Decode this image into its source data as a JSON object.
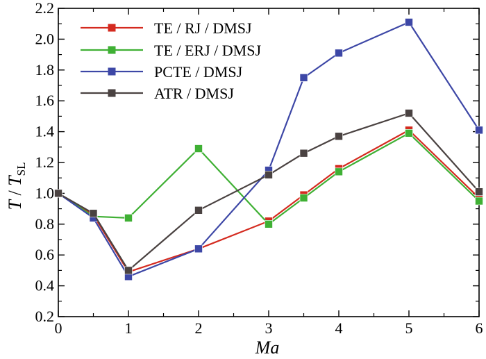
{
  "chart_data": {
    "type": "line",
    "title": "",
    "xlabel": "Ma",
    "ylabel_main": "T",
    "ylabel_sep": " / ",
    "ylabel_sub_base": "T",
    "ylabel_subscript": "SL",
    "xlim": [
      0,
      6
    ],
    "ylim": [
      0.2,
      2.2
    ],
    "x_ticks": [
      0,
      1,
      2,
      3,
      4,
      5,
      6
    ],
    "x_tick_labels": [
      "0",
      "1",
      "2",
      "3",
      "4",
      "5",
      "6"
    ],
    "y_ticks": [
      0.2,
      0.4,
      0.6,
      0.8,
      1.0,
      1.2,
      1.4,
      1.6,
      1.8,
      2.0,
      2.2
    ],
    "y_tick_labels": [
      "0.2",
      "0.4",
      "0.6",
      "0.8",
      "1.0",
      "1.2",
      "1.4",
      "1.6",
      "1.8",
      "2.0",
      "2.2"
    ],
    "grid": false,
    "legend_position": "top-left",
    "series": [
      {
        "name": "TE / RJ / DMSJ",
        "color": "#d42a1f",
        "x": [
          0,
          0.5,
          1,
          2,
          3,
          3.5,
          4,
          5,
          6
        ],
        "y": [
          1.0,
          0.86,
          0.49,
          0.64,
          0.82,
          0.99,
          1.16,
          1.41,
          0.97
        ]
      },
      {
        "name": "TE / ERJ / DMSJ",
        "color": "#3fb034",
        "x": [
          0,
          0.5,
          1,
          2,
          3,
          3.5,
          4,
          5,
          6
        ],
        "y": [
          1.0,
          0.85,
          0.84,
          1.29,
          0.8,
          0.97,
          1.14,
          1.39,
          0.95
        ]
      },
      {
        "name": "PCTE / DMSJ",
        "color": "#3d47a6",
        "x": [
          0,
          0.5,
          1,
          2,
          3,
          3.5,
          4,
          5,
          6
        ],
        "y": [
          1.0,
          0.84,
          0.46,
          0.64,
          1.15,
          1.75,
          1.91,
          2.11,
          1.41
        ]
      },
      {
        "name": "ATR / DMSJ",
        "color": "#4a4241",
        "x": [
          0,
          0.5,
          1,
          2,
          3,
          3.5,
          4,
          5,
          6
        ],
        "y": [
          1.0,
          0.87,
          0.5,
          0.89,
          1.12,
          1.26,
          1.37,
          1.52,
          1.01
        ]
      }
    ]
  }
}
